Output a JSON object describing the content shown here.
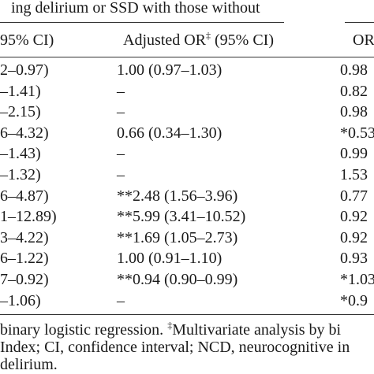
{
  "header": {
    "group_caption": "ing delirium or SSD with those without"
  },
  "columns": {
    "col1_head": "95% CI)",
    "col2_head": "Adjusted OR",
    "col2_mark": "‡",
    "col2_tail": " (95% CI)",
    "col3_head": "OR"
  },
  "rows": [
    {
      "c1": "2–0.97)",
      "c2": "1.00 (0.97–1.03)",
      "c3": "0.98"
    },
    {
      "c1": "–1.41)",
      "c2": "–",
      "c3": "0.82"
    },
    {
      "c1": "–2.15)",
      "c2": "–",
      "c3": "0.98"
    },
    {
      "c1": "6–4.32)",
      "c2": "0.66 (0.34–1.30)",
      "c3": "*0.53"
    },
    {
      "c1": "–1.43)",
      "c2": "–",
      "c3": "0.99"
    },
    {
      "c1": "–1.32)",
      "c2": "–",
      "c3": "1.53"
    },
    {
      "c1": "6–4.87)",
      "c2": "**2.48 (1.56–3.96)",
      "c3": "0.77"
    },
    {
      "c1": "1–12.89)",
      "c2": "**5.99 (3.41–10.52)",
      "c3": "0.92"
    },
    {
      "c1": "3–4.22)",
      "c2": "**1.69 (1.05–2.73)",
      "c3": "0.92"
    },
    {
      "c1": "6–1.22)",
      "c2": "1.00 (0.91–1.10)",
      "c3": "0.93"
    },
    {
      "c1": "7–0.92)",
      "c2": "**0.94 (0.90–0.99)",
      "c3": "*1.03"
    },
    {
      "c1": "–1.06)",
      "c2": "–",
      "c3": "*0.9"
    }
  ],
  "footnotes": {
    "line1_a": "binary logistic regression. ",
    "line1_mark": "‡",
    "line1_b": "Multivariate analysis by bi",
    "line2": "Index; CI, confidence interval; NCD, neurocognitive in",
    "line3": "delirium."
  }
}
